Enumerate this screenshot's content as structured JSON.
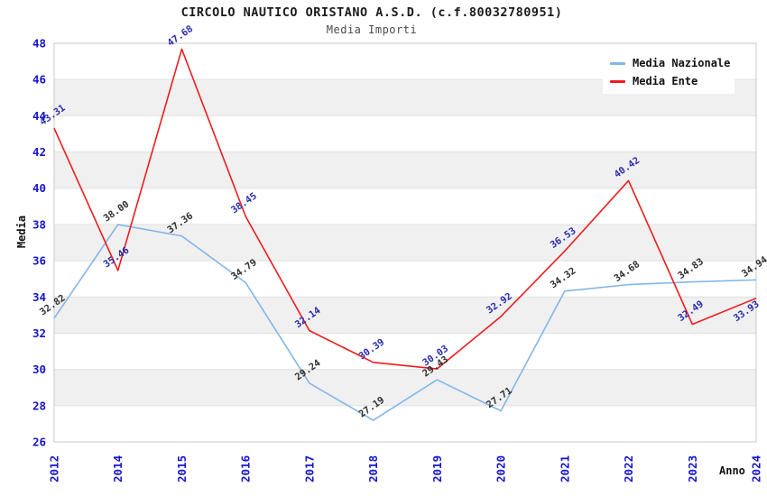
{
  "chart_data": {
    "type": "line",
    "title": "CIRCOLO NAUTICO ORISTANO A.S.D. (c.f.80032780951)",
    "subtitle": "Media Importi",
    "xlabel": "Anno",
    "ylabel": "Media",
    "categories": [
      "2012",
      "2014",
      "2015",
      "2016",
      "2017",
      "2018",
      "2019",
      "2020",
      "2021",
      "2022",
      "2023",
      "2024"
    ],
    "ylim": [
      26,
      48
    ],
    "ytick_step": 2,
    "yticks": [
      26,
      28,
      30,
      32,
      34,
      36,
      38,
      40,
      42,
      44,
      46,
      48
    ],
    "grid": "horizontal gridlines with alternating gray bands",
    "legend_position": "top-right",
    "series": [
      {
        "name": "Media Nazionale",
        "color": "#82b6e7",
        "label_color": "#303030",
        "values": [
          32.82,
          38.0,
          37.36,
          34.79,
          29.24,
          27.19,
          29.43,
          27.71,
          34.32,
          34.68,
          34.83,
          34.94
        ]
      },
      {
        "name": "Media Ente",
        "color": "#ee1c1c",
        "label_color": "#2b2bb0",
        "values": [
          43.31,
          35.46,
          47.68,
          38.45,
          32.14,
          30.39,
          30.03,
          32.92,
          36.53,
          40.42,
          32.49,
          33.93
        ]
      }
    ],
    "colors": {
      "tick_label": "#1515cc",
      "band_gray": "#f0f0f0",
      "gridline": "#e0e0e0",
      "plot_border": "#c8c8c8",
      "background": "#ffffff"
    }
  }
}
